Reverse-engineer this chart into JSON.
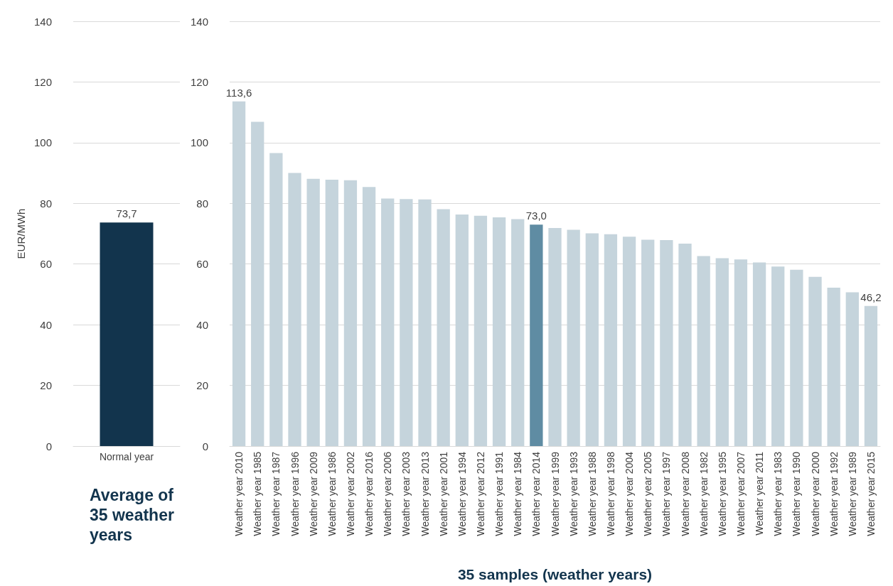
{
  "chart_data": [
    {
      "type": "bar",
      "categories": [
        "Normal year"
      ],
      "values": [
        73.7
      ],
      "value_labels": [
        "73,7"
      ],
      "color": "#12344d",
      "ylabel": "EUR/MWh",
      "xlabel": "Average of 35 weather years",
      "ylim": [
        0,
        140
      ],
      "yticks": [
        0,
        20,
        40,
        60,
        80,
        100,
        120,
        140
      ],
      "grid": "y"
    },
    {
      "type": "bar",
      "categories": [
        "Weather year 2010",
        "Weather year 1985",
        "Weather year 1987",
        "Weather year 1996",
        "Weather year 2009",
        "Weather year 1986",
        "Weather year 2002",
        "Weather year 2016",
        "Weather year 2006",
        "Weather year 2003",
        "Weather year 2013",
        "Weather year 2001",
        "Weather year 1994",
        "Weather year 2012",
        "Weather year 1991",
        "Weather year 1984",
        "Weather year 2014",
        "Weather year 1999",
        "Weather year 1993",
        "Weather year 1988",
        "Weather year 1998",
        "Weather year 2004",
        "Weather year 2005",
        "Weather year 1997",
        "Weather year 2008",
        "Weather year 1982",
        "Weather year 1995",
        "Weather year 2007",
        "Weather year 2011",
        "Weather year 1983",
        "Weather year 1990",
        "Weather year 2000",
        "Weather year 1992",
        "Weather year 1989",
        "Weather year 2015"
      ],
      "values": [
        113.6,
        106.9,
        96.6,
        90.0,
        88.1,
        87.8,
        87.6,
        85.4,
        81.6,
        81.4,
        81.3,
        78.1,
        76.3,
        75.9,
        75.4,
        74.8,
        73.0,
        71.9,
        71.3,
        70.1,
        69.8,
        69.0,
        68.0,
        67.9,
        66.7,
        62.6,
        61.9,
        61.5,
        60.5,
        59.2,
        58.1,
        55.8,
        52.2,
        50.7,
        46.2
      ],
      "value_labels": [
        "113,6",
        null,
        null,
        null,
        null,
        null,
        null,
        null,
        null,
        null,
        null,
        null,
        null,
        null,
        null,
        null,
        "73,0",
        null,
        null,
        null,
        null,
        null,
        null,
        null,
        null,
        null,
        null,
        null,
        null,
        null,
        null,
        null,
        null,
        null,
        "46,2"
      ],
      "colors": [
        "#c5d4dc",
        "#c5d4dc",
        "#c5d4dc",
        "#c5d4dc",
        "#c5d4dc",
        "#c5d4dc",
        "#c5d4dc",
        "#c5d4dc",
        "#c5d4dc",
        "#c5d4dc",
        "#c5d4dc",
        "#c5d4dc",
        "#c5d4dc",
        "#c5d4dc",
        "#c5d4dc",
        "#c5d4dc",
        "#5f8ca3",
        "#c5d4dc",
        "#c5d4dc",
        "#c5d4dc",
        "#c5d4dc",
        "#c5d4dc",
        "#c5d4dc",
        "#c5d4dc",
        "#c5d4dc",
        "#c5d4dc",
        "#c5d4dc",
        "#c5d4dc",
        "#c5d4dc",
        "#c5d4dc",
        "#c5d4dc",
        "#c5d4dc",
        "#c5d4dc",
        "#c5d4dc",
        "#c5d4dc"
      ],
      "xlabel": "35 samples (weather years)",
      "ylim": [
        0,
        140
      ],
      "yticks": [
        0,
        20,
        40,
        60,
        80,
        100,
        120,
        140
      ],
      "grid": "y"
    }
  ]
}
